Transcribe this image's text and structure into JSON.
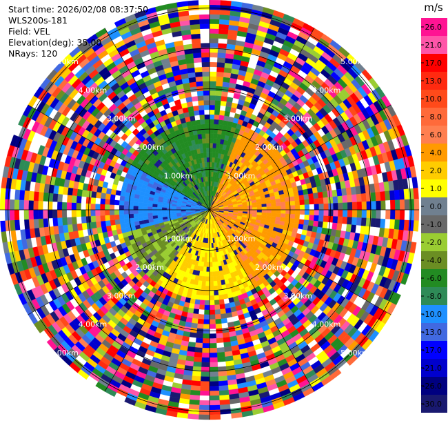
{
  "info": {
    "start_time": "Start time: 2026/02/08 08:37:50",
    "station": "WLS200s-181",
    "field": "Field: VEL",
    "elevation": "Elevation(deg): 35.00",
    "nrays": "NRays: 120"
  },
  "colorbar": {
    "unit": "m/s",
    "tick_labels": [
      "26.0",
      "21.0",
      "17.0",
      "13.0",
      "10.0",
      "8.0",
      "6.0",
      "4.0",
      "2.0",
      "1.0",
      "0.0",
      "-1.0",
      "-2.0",
      "-4.0",
      "-6.0",
      "-8.0",
      "-10.0",
      "-13.0",
      "-17.0",
      "-21.0",
      "-26.0",
      "-30.0"
    ],
    "colors": [
      "#ff1493",
      "#ff55a8",
      "#ff0000",
      "#ff2a10",
      "#ff4a1a",
      "#ff6a3a",
      "#ff7f50",
      "#ff9a00",
      "#ffcc00",
      "#ffff00",
      "#708090",
      "#696969",
      "#9acd32",
      "#6b8e23",
      "#228b22",
      "#2e8b57",
      "#1e90ff",
      "#4169e1",
      "#0000ff",
      "#0000cd",
      "#000080",
      "#191970"
    ]
  },
  "chart_data": {
    "type": "ppi",
    "field": "VEL",
    "units": "m/s",
    "elevation_deg": 35.0,
    "n_rays": 120,
    "range_rings_km": [
      1.0,
      2.0,
      3.0,
      4.0,
      5.0
    ],
    "ring_labels": [
      "1.00km",
      "2.00km",
      "3.00km",
      "4.00km",
      "5.00km"
    ],
    "max_range_km": 5.2,
    "grid": true,
    "colorbar_position": "right"
  }
}
